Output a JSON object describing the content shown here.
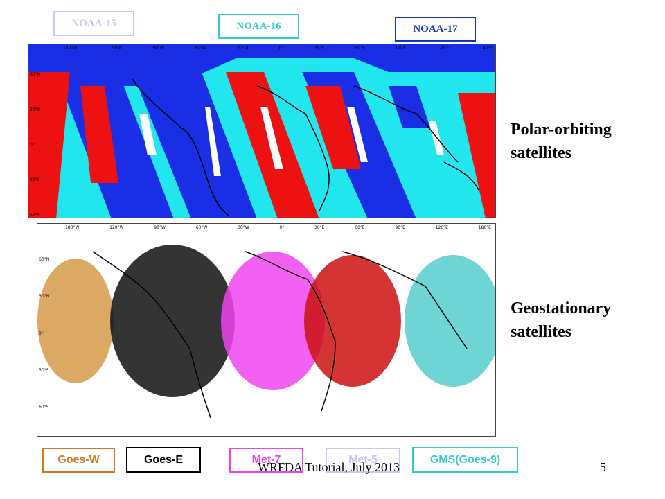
{
  "polar_legend": [
    {
      "label": "NOAA-15",
      "color": "#c7c7ef"
    },
    {
      "label": "NOAA-16",
      "color": "#33cccc"
    },
    {
      "label": "NOAA-17",
      "color": "#1133cc"
    }
  ],
  "geo_legend": [
    {
      "label": "Goes-W",
      "color": "#cc7a22"
    },
    {
      "label": "Goes-E",
      "color": "#000000"
    },
    {
      "label": "Met-7",
      "color": "#ee44ee"
    },
    {
      "label": "Met-5",
      "color": "#c7c7ef"
    },
    {
      "label": "GMS(Goes-9)",
      "color": "#33cccc"
    }
  ],
  "polar_map": {
    "lon_labels": [
      "180°W",
      "120°W",
      "90°W",
      "60°W",
      "30°W",
      "0°",
      "30°E",
      "60°E",
      "90°E",
      "120°E",
      "180°E"
    ],
    "lat_labels": [
      "60°N",
      "30°N",
      "0°",
      "30°S",
      "60°S"
    ]
  },
  "geo_map": {
    "lon_labels": [
      "180°W",
      "120°W",
      "90°W",
      "60°W",
      "30°W",
      "0°",
      "30°E",
      "60°E",
      "90°E",
      "120°E",
      "180°E"
    ],
    "lat_labels": [
      "60°N",
      "30°N",
      "0°",
      "30°S",
      "60°S"
    ]
  },
  "side_labels": {
    "polar": "Polar-orbiting satellites",
    "geo": "Geostationary satellites"
  },
  "footer": {
    "text": "WRFDA Tutorial, July 2013",
    "page": "5"
  }
}
